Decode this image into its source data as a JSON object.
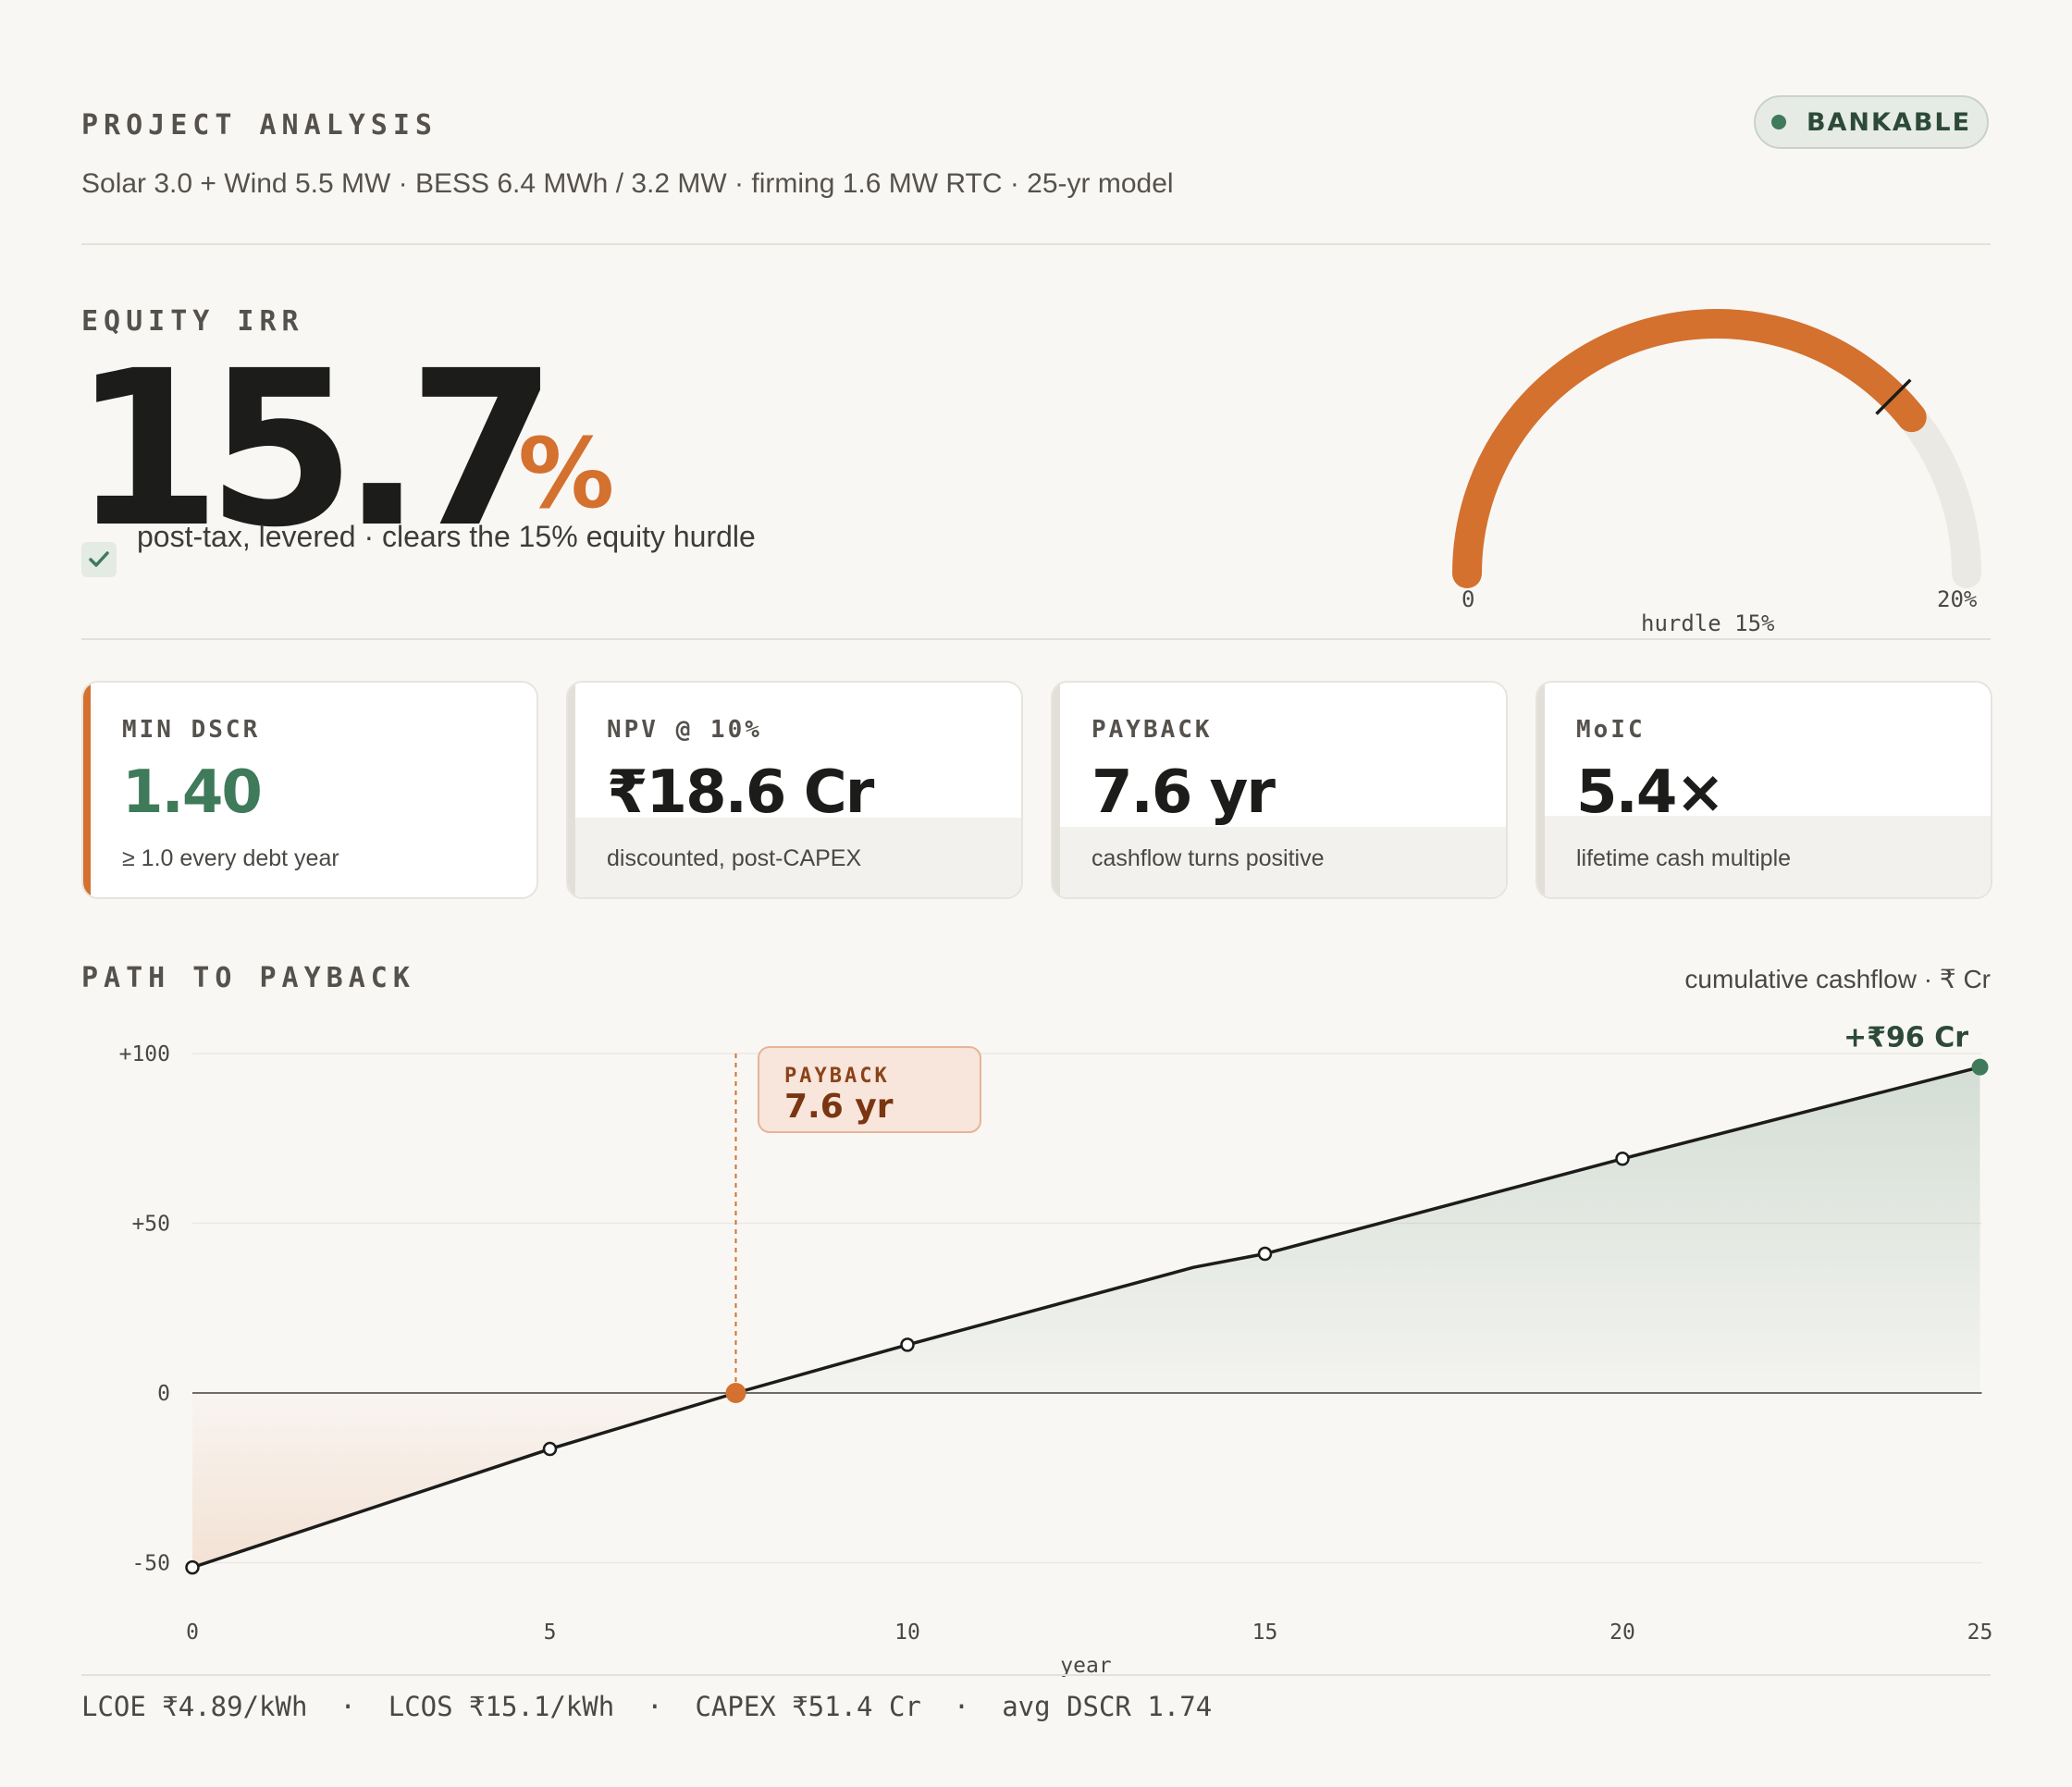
{
  "header": {
    "eyebrow": "PROJECT ANALYSIS",
    "subtitle": "Solar 3.0 + Wind 5.5 MW · BESS 6.4 MWh / 3.2 MW · firming 1.6 MW RTC · 25-yr model",
    "badge": "BANKABLE"
  },
  "irr": {
    "label": "EQUITY IRR",
    "value": "15.7",
    "unit": "%",
    "note": "post-tax, levered · clears the 15% equity hurdle",
    "gauge": {
      "value": 15.7,
      "min": 0,
      "max": 20,
      "hurdle": 15,
      "min_label": "0",
      "max_label": "20%",
      "hurdle_label": "hurdle 15%"
    }
  },
  "metrics": [
    {
      "label": "MIN DSCR",
      "value": "1.40",
      "note": "≥ 1.0 every debt year",
      "highlight": true,
      "fill": 0
    },
    {
      "label": "NPV @ 10%",
      "value": "₹18.6 Cr",
      "note": "discounted, post-CAPEX",
      "highlight": false,
      "fill": 0.36
    },
    {
      "label": "PAYBACK",
      "value": "7.6 yr",
      "note": "cashflow turns positive",
      "highlight": false,
      "fill": 0.32
    },
    {
      "label": "MoIC",
      "value": "5.4×",
      "note": "lifetime cash multiple",
      "highlight": false,
      "fill": 0.37
    }
  ],
  "chart_section": {
    "title": "PATH TO PAYBACK",
    "note": "cumulative cashflow · ₹ Cr"
  },
  "chart_data": {
    "type": "area",
    "xlabel": "year",
    "ylabel": "",
    "xlim": [
      0,
      25
    ],
    "ylim": [
      -50,
      100
    ],
    "x_ticks": [
      0,
      5,
      10,
      15,
      20,
      25
    ],
    "y_ticks": [
      100,
      50,
      0,
      -50
    ],
    "y_tick_labels": [
      "+100",
      "+50",
      "0",
      "-50"
    ],
    "x": [
      0,
      5,
      7.6,
      10,
      14,
      15,
      20,
      25
    ],
    "y": [
      -51.4,
      -16.5,
      0,
      14.2,
      37.0,
      41.0,
      69.0,
      96.0
    ],
    "markers": [
      0,
      5,
      10,
      15,
      20
    ],
    "end_label": "+₹96 Cr",
    "payback": {
      "x": 7.6,
      "label": "PAYBACK",
      "value": "7.6 yr"
    },
    "colors": {
      "line": "#1c1c1a",
      "positive": "#3f7a5a",
      "negative": "#d4712f"
    }
  },
  "footer": "LCOE ₹4.89/kWh  ·  LCOS ₹15.1/kWh  ·  CAPEX ₹51.4 Cr  ·  avg DSCR 1.74"
}
